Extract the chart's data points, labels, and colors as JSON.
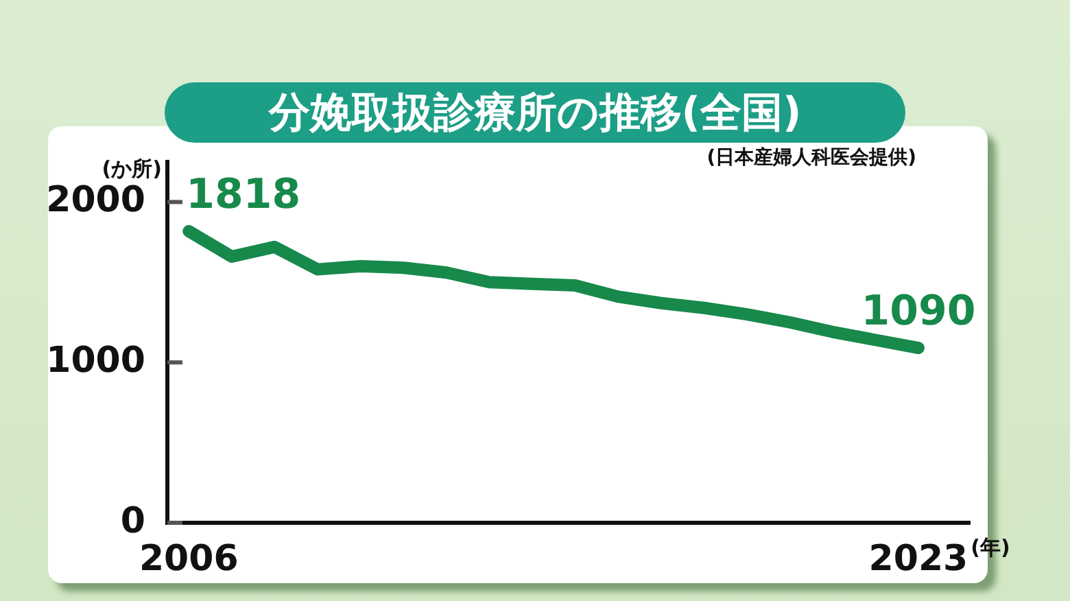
{
  "chart_data": {
    "type": "line",
    "title": "分娩取扱診療所の推移(全国)",
    "ylabel": "(か所)",
    "xlabel": "(年)",
    "annotations": [
      "(日本産婦人科医会提供)"
    ],
    "x": [
      2006,
      2007,
      2008,
      2009,
      2010,
      2011,
      2012,
      2013,
      2014,
      2015,
      2016,
      2017,
      2018,
      2019,
      2020,
      2021,
      2022,
      2023
    ],
    "series": [
      {
        "color": "#17894b",
        "values": [
          1818,
          1660,
          1720,
          1580,
          1600,
          1590,
          1560,
          1500,
          1490,
          1480,
          1410,
          1370,
          1340,
          1300,
          1250,
          1190,
          1140,
          1090
        ],
        "value_labels": [
          "1818",
          null,
          null,
          null,
          null,
          null,
          null,
          null,
          null,
          null,
          null,
          null,
          null,
          null,
          null,
          null,
          null,
          "1090"
        ]
      }
    ],
    "xlim": [
      2005.5,
      2024.2
    ],
    "xticks": [
      2006,
      2023
    ],
    "ylim": [
      0,
      2250
    ],
    "yticks": [
      0,
      1000,
      2000
    ]
  }
}
